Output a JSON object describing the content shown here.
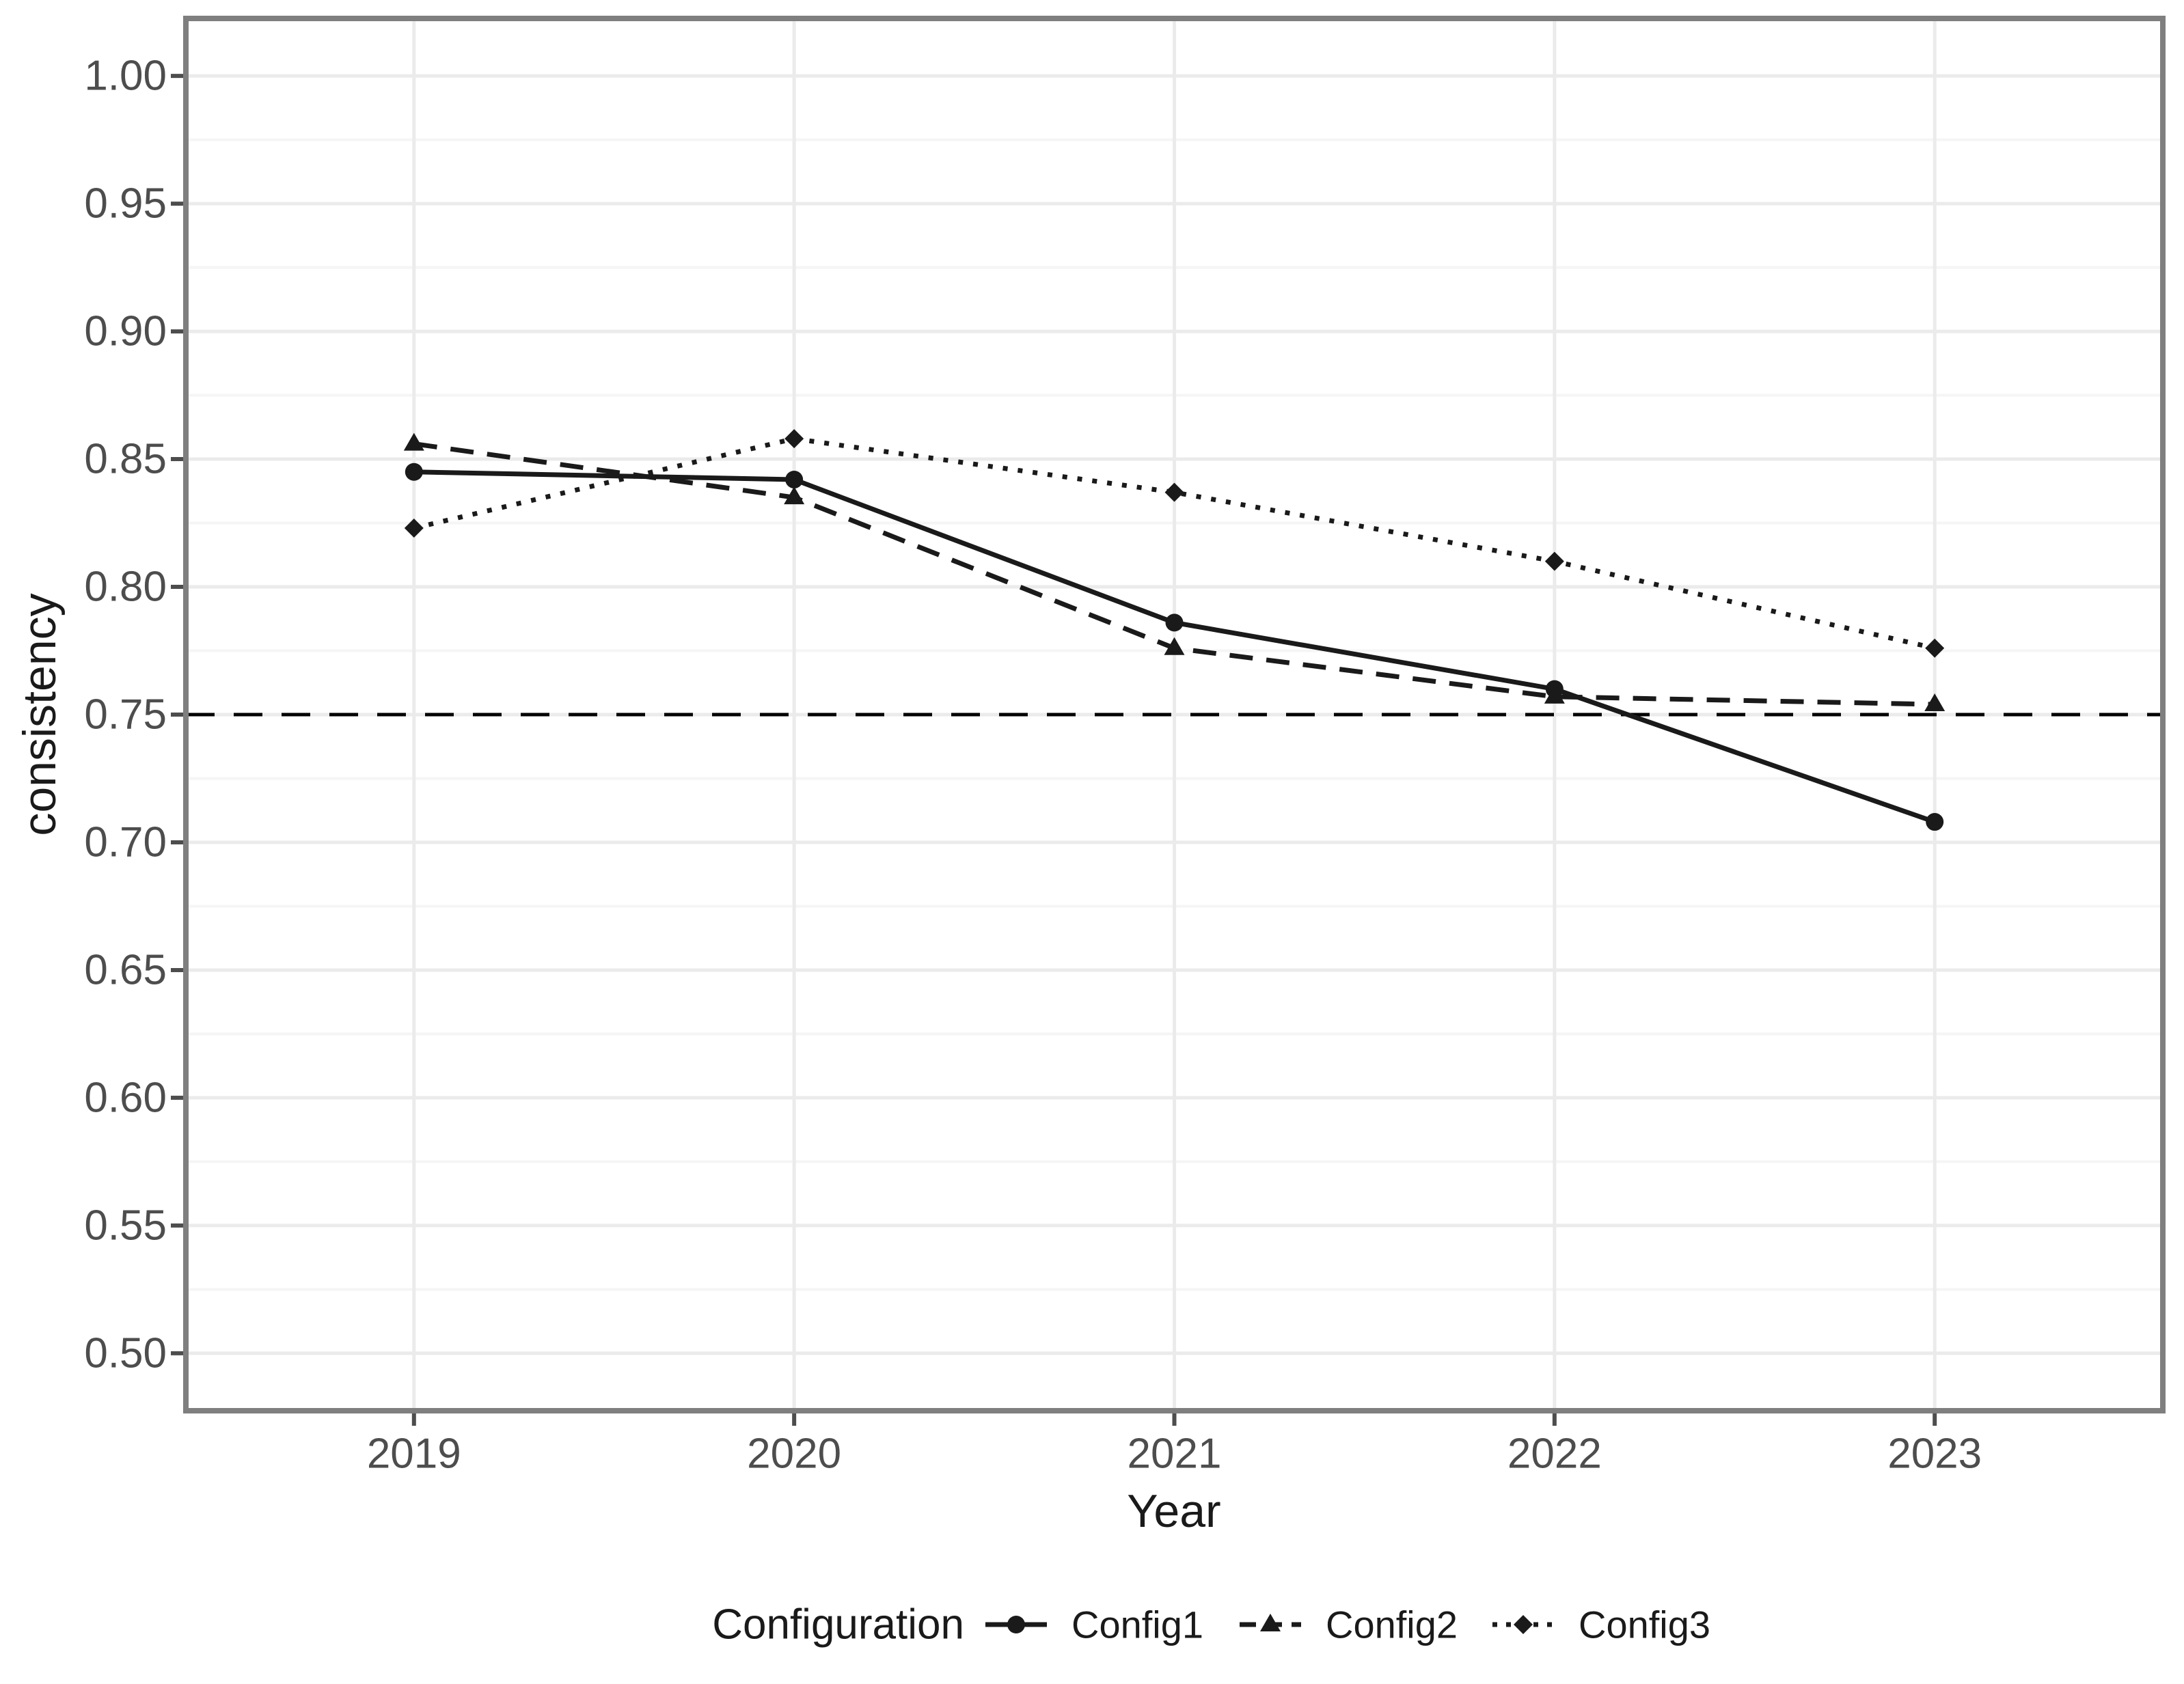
{
  "chart_data": {
    "type": "line",
    "title": "",
    "xlabel": "Year",
    "ylabel": "consistency",
    "x": [
      2019,
      2020,
      2021,
      2022,
      2023
    ],
    "x_tick_labels": [
      "2019",
      "2020",
      "2021",
      "2022",
      "2023"
    ],
    "y_ticks": [
      1.0,
      0.95,
      0.9,
      0.85,
      0.8,
      0.75,
      0.7,
      0.65,
      0.6,
      0.55,
      0.5
    ],
    "y_tick_labels": [
      "1.00",
      "0.95",
      "0.90",
      "0.85",
      "0.80",
      "0.75",
      "0.70",
      "0.65",
      "0.60",
      "0.55",
      "0.50"
    ],
    "y_minor_ticks": [
      0.975,
      0.925,
      0.875,
      0.825,
      0.775,
      0.725,
      0.675,
      0.625,
      0.575,
      0.525
    ],
    "xlim": [
      2018.4,
      2023.6
    ],
    "ylim": [
      0.4775,
      1.0225
    ],
    "grid": "major+minor horizontal, major vertical at years",
    "series": [
      {
        "name": "Config1",
        "linetype": "solid",
        "marker": "circle",
        "values": [
          0.845,
          0.842,
          0.786,
          0.76,
          0.708
        ]
      },
      {
        "name": "Config2",
        "linetype": "dashed",
        "marker": "triangle",
        "values": [
          0.856,
          0.835,
          0.776,
          0.757,
          0.754
        ]
      },
      {
        "name": "Config3",
        "linetype": "dotted",
        "marker": "diamond",
        "values": [
          0.823,
          0.858,
          0.837,
          0.81,
          0.776
        ]
      }
    ],
    "reference_line": {
      "value": 0.75,
      "style": "dashed",
      "color": "#000000"
    },
    "legend": {
      "title": "Configuration",
      "position": "bottom",
      "entries": [
        "Config1",
        "Config2",
        "Config3"
      ]
    }
  },
  "colors": {
    "series_stroke": "#1a1a1a",
    "tick_label": "#4d4d4d",
    "axis_title": "#1a1a1a",
    "panel_border": "#7f7f7f",
    "tick_mark": "#4d4d4d",
    "grid_major": "#ebebeb",
    "grid_minor": "#f5f5f5",
    "background": "#ffffff"
  }
}
